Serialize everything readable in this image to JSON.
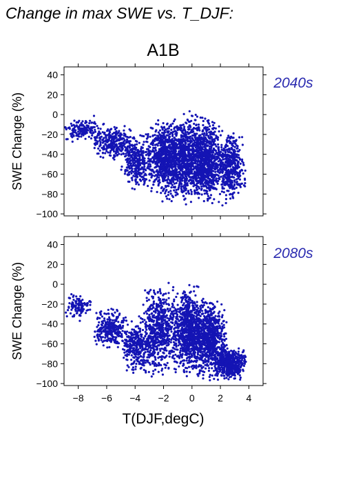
{
  "figure": {
    "title": "Change in max SWE vs. T_DJF:",
    "scenario": "A1B",
    "x_axis_label": "T(DJF,degC)",
    "period_color": "#2a2ab0"
  },
  "chart_data": [
    {
      "type": "scatter",
      "period": "2040s",
      "ylabel": "SWE Change (%)",
      "xlim": [
        -9,
        5
      ],
      "ylim": [
        -102,
        48
      ],
      "xticks": [
        -8,
        -6,
        -4,
        -2,
        0,
        2,
        4
      ],
      "yticks": [
        -100,
        -80,
        -60,
        -40,
        -20,
        0,
        20,
        40
      ],
      "xticklabels": [],
      "yticklabels": [
        "−100",
        "−80",
        "−60",
        "−40",
        "−20",
        "0",
        "20",
        "40"
      ],
      "point_color": "#1414b4",
      "approx_points": 3500,
      "clusters": [
        {
          "x": [
            -9,
            -6.5
          ],
          "y": [
            -30,
            0
          ],
          "weight": 0.04
        },
        {
          "x": [
            -7,
            -4
          ],
          "y": [
            -50,
            -5
          ],
          "weight": 0.08
        },
        {
          "x": [
            -5,
            -2.5
          ],
          "y": [
            -85,
            -10
          ],
          "weight": 0.1
        },
        {
          "x": [
            -3,
            -1
          ],
          "y": [
            -90,
            5
          ],
          "weight": 0.16
        },
        {
          "x": [
            -2,
            1
          ],
          "y": [
            -97,
            8
          ],
          "weight": 0.28
        },
        {
          "x": [
            0,
            2
          ],
          "y": [
            -97,
            5
          ],
          "weight": 0.2
        },
        {
          "x": [
            1.5,
            3.8
          ],
          "y": [
            -95,
            -10
          ],
          "weight": 0.14
        }
      ]
    },
    {
      "type": "scatter",
      "period": "2080s",
      "ylabel": "SWE Change (%)",
      "xlim": [
        -9,
        5
      ],
      "ylim": [
        -102,
        48
      ],
      "xticks": [
        -8,
        -6,
        -4,
        -2,
        0,
        2,
        4
      ],
      "yticks": [
        -100,
        -80,
        -60,
        -40,
        -20,
        0,
        20,
        40
      ],
      "xticklabels": [
        "−8",
        "−6",
        "−4",
        "−2",
        "0",
        "2",
        "4"
      ],
      "yticklabels": [
        "−100",
        "−80",
        "−60",
        "−40",
        "−20",
        "0",
        "20",
        "40"
      ],
      "point_color": "#1414b4",
      "approx_points": 3500,
      "clusters": [
        {
          "x": [
            -9,
            -7
          ],
          "y": [
            -40,
            -5
          ],
          "weight": 0.03
        },
        {
          "x": [
            -7,
            -4.5
          ],
          "y": [
            -70,
            -20
          ],
          "weight": 0.08
        },
        {
          "x": [
            -5,
            -2.5
          ],
          "y": [
            -95,
            -30
          ],
          "weight": 0.1
        },
        {
          "x": [
            -3.5,
            -1
          ],
          "y": [
            -98,
            8
          ],
          "weight": 0.16
        },
        {
          "x": [
            -1.5,
            1
          ],
          "y": [
            -100,
            5
          ],
          "weight": 0.25
        },
        {
          "x": [
            0,
            2.5
          ],
          "y": [
            -100,
            -10
          ],
          "weight": 0.23
        },
        {
          "x": [
            1.5,
            3.8
          ],
          "y": [
            -100,
            -60
          ],
          "weight": 0.15
        }
      ]
    }
  ]
}
